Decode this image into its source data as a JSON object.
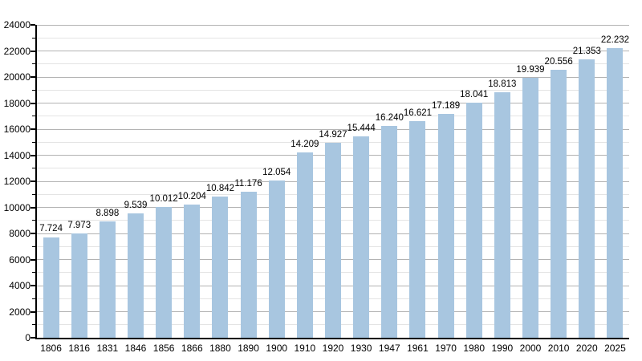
{
  "chart_data": {
    "type": "bar",
    "title": "",
    "categories": [
      "1806",
      "1816",
      "1831",
      "1846",
      "1856",
      "1866",
      "1880",
      "1890",
      "1900",
      "1910",
      "1920",
      "1930",
      "1947",
      "1961",
      "1970",
      "1980",
      "1990",
      "2000",
      "2010",
      "2020",
      "2025"
    ],
    "values": [
      7724,
      7973,
      8898,
      9539,
      10012,
      10204,
      10842,
      11176,
      12054,
      14209,
      14927,
      15444,
      16240,
      16621,
      17189,
      18041,
      18813,
      19939,
      20556,
      21353,
      22232
    ],
    "value_labels": [
      "7.724",
      "7.973",
      "8.898",
      "9.539",
      "10.012",
      "10.204",
      "10.842",
      "11.176",
      "12.054",
      "14.209",
      "14.927",
      "15.444",
      "16.240",
      "16.621",
      "17.189",
      "18.041",
      "18.813",
      "19.939",
      "20.556",
      "21.353",
      "22.232"
    ],
    "xlabel": "",
    "ylabel": "",
    "ylim": [
      0,
      24000
    ],
    "y_major_step": 2000,
    "y_minor_step": 1000,
    "y_tick_labels": [
      "0",
      "2000",
      "4000",
      "6000",
      "8000",
      "10000",
      "12000",
      "14000",
      "16000",
      "18000",
      "20000",
      "22000",
      "24000"
    ],
    "grid": "on",
    "legend_position": "none",
    "colors": {
      "bar_fill": "#a8c6e0",
      "grid_major": "#b3b3b3",
      "grid_minor": "#e4e4e4",
      "axis": "#000000",
      "text": "#000000",
      "background": "#ffffff"
    }
  }
}
